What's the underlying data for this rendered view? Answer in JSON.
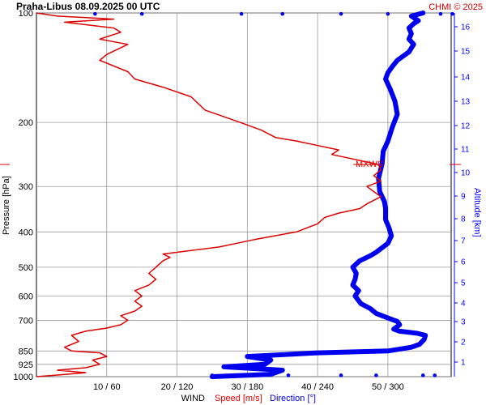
{
  "header": {
    "title": "Praha-Libus   08.09.2025 00 UTC",
    "copyright": "CHMI © 2025"
  },
  "colors": {
    "speed": "#dd0000",
    "direction": "#0000ee",
    "grid": "#9a9a9a",
    "altitude_axis": "#0000ff"
  },
  "chart_data": {
    "type": "line",
    "title": "Praha-Libus   08.09.2025 00 UTC",
    "y_axis": {
      "label": "Pressure [hPa]",
      "scale": "log",
      "range": [
        1000,
        100
      ],
      "ticks": [
        100,
        200,
        300,
        400,
        500,
        600,
        700,
        850,
        925,
        1000
      ]
    },
    "y2_axis": {
      "label": "Altitude [km]",
      "ticks": [
        1,
        2,
        3,
        4,
        5,
        6,
        7,
        8,
        9,
        10,
        11,
        12,
        13,
        14,
        15,
        16
      ]
    },
    "x_axis": {
      "label": "WIND",
      "speed_label": "Speed [m/s]",
      "direction_label": "Direction [°]",
      "speed_range": [
        0,
        59
      ],
      "direction_range": [
        0,
        354
      ],
      "tick_labels": [
        "10 / 60",
        "20 / 120",
        "30 / 180",
        "40 / 240",
        "50 / 300"
      ]
    },
    "grid": true,
    "annotation": "MXWS",
    "max_wind": {
      "pressure": 261,
      "speed": 48.7
    },
    "series": [
      {
        "name": "Speed [m/s]",
        "unit": "m/s",
        "points": [
          [
            1000,
            0
          ],
          [
            990,
            3
          ],
          [
            975,
            7
          ],
          [
            960,
            3
          ],
          [
            945,
            7
          ],
          [
            925,
            9
          ],
          [
            900,
            8
          ],
          [
            880,
            10
          ],
          [
            860,
            9
          ],
          [
            850,
            5
          ],
          [
            830,
            4
          ],
          [
            800,
            6
          ],
          [
            770,
            5
          ],
          [
            750,
            7
          ],
          [
            735,
            10
          ],
          [
            720,
            12
          ],
          [
            700,
            13
          ],
          [
            680,
            12
          ],
          [
            660,
            14
          ],
          [
            640,
            15
          ],
          [
            620,
            14
          ],
          [
            600,
            15
          ],
          [
            580,
            14
          ],
          [
            560,
            16
          ],
          [
            540,
            17
          ],
          [
            520,
            16
          ],
          [
            500,
            17
          ],
          [
            480,
            18
          ],
          [
            470,
            19
          ],
          [
            460,
            18
          ],
          [
            440,
            26
          ],
          [
            420,
            31
          ],
          [
            400,
            37
          ],
          [
            380,
            40
          ],
          [
            365,
            41
          ],
          [
            355,
            43
          ],
          [
            345,
            46
          ],
          [
            335,
            47
          ],
          [
            320,
            49
          ],
          [
            310,
            48
          ],
          [
            300,
            47
          ],
          [
            290,
            49
          ],
          [
            280,
            48
          ],
          [
            270,
            49
          ],
          [
            261,
            48.7
          ],
          [
            245,
            42
          ],
          [
            238,
            43
          ],
          [
            225,
            37
          ],
          [
            220,
            34
          ],
          [
            210,
            32
          ],
          [
            200,
            29
          ],
          [
            185,
            24
          ],
          [
            170,
            22
          ],
          [
            160,
            18
          ],
          [
            152,
            14
          ],
          [
            145,
            13
          ],
          [
            135,
            9
          ],
          [
            130,
            10
          ],
          [
            122,
            13
          ],
          [
            118,
            9
          ],
          [
            113,
            12
          ],
          [
            110,
            11
          ],
          [
            106,
            4
          ],
          [
            104,
            11
          ],
          [
            102,
            3
          ],
          [
            100,
            0
          ]
        ]
      },
      {
        "name": "Direction [°]",
        "unit": "°",
        "points": [
          [
            1000,
            150
          ],
          [
            985,
            200
          ],
          [
            960,
            210
          ],
          [
            940,
            160
          ],
          [
            925,
            195
          ],
          [
            900,
            200
          ],
          [
            880,
            180
          ],
          [
            860,
            240
          ],
          [
            850,
            300
          ],
          [
            830,
            320
          ],
          [
            815,
            327
          ],
          [
            790,
            331
          ],
          [
            770,
            332
          ],
          [
            760,
            325
          ],
          [
            750,
            310
          ],
          [
            740,
            305
          ],
          [
            720,
            310
          ],
          [
            705,
            308
          ],
          [
            690,
            300
          ],
          [
            670,
            290
          ],
          [
            650,
            285
          ],
          [
            630,
            277
          ],
          [
            600,
            272
          ],
          [
            580,
            275
          ],
          [
            560,
            270
          ],
          [
            540,
            272
          ],
          [
            520,
            273
          ],
          [
            500,
            270
          ],
          [
            480,
            276
          ],
          [
            465,
            285
          ],
          [
            455,
            290
          ],
          [
            430,
            300
          ],
          [
            410,
            303
          ],
          [
            390,
            301
          ],
          [
            370,
            298
          ],
          [
            345,
            298
          ],
          [
            330,
            297
          ],
          [
            310,
            293
          ],
          [
            285,
            292
          ],
          [
            260,
            295
          ],
          [
            240,
            296
          ],
          [
            225,
            300
          ],
          [
            205,
            304
          ],
          [
            190,
            308
          ],
          [
            175,
            306
          ],
          [
            162,
            302
          ],
          [
            152,
            298
          ],
          [
            146,
            300
          ],
          [
            140,
            304
          ],
          [
            135,
            308
          ],
          [
            128,
            318
          ],
          [
            122,
            322
          ],
          [
            118,
            318
          ],
          [
            114,
            320
          ],
          [
            110,
            318
          ],
          [
            107,
            322
          ],
          [
            105,
            326
          ],
          [
            102,
            320
          ],
          [
            100,
            330
          ]
        ]
      }
    ],
    "surface_direction_obs": [
      150,
      180,
      215,
      260,
      290,
      330,
      340
    ],
    "top_direction_obs": [
      50,
      90,
      175,
      210,
      260,
      300,
      345,
      355
    ]
  }
}
